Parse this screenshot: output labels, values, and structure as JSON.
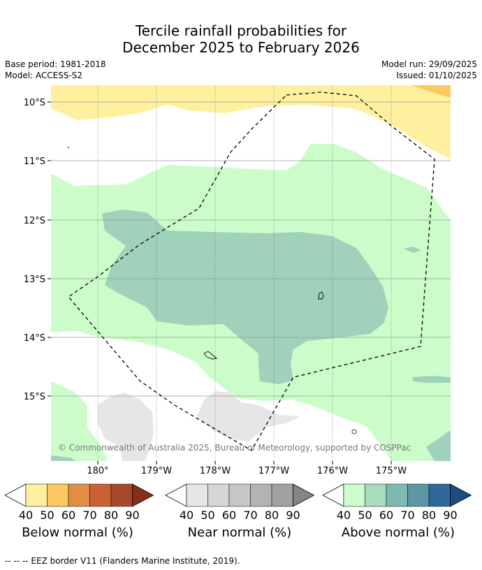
{
  "header": {
    "title_line1": "Tercile rainfall probabilities for",
    "title_line2": "December 2025 to February 2026",
    "base_period": "Base period: 1981-2018",
    "model": "Model: ACCESS-S2",
    "model_run": "Model run: 29/09/2025",
    "issued": "Issued: 01/10/2025"
  },
  "map": {
    "lat_labels": [
      "10°S",
      "11°S",
      "12°S",
      "13°S",
      "14°S",
      "15°S"
    ],
    "lon_labels": [
      "180°",
      "179°W",
      "178°W",
      "177°W",
      "176°W",
      "175°W"
    ],
    "copyright": "© Commonwealth of Australia 2025, Bureau of Meteorology, supported by COSPPac"
  },
  "legend": {
    "ticks": [
      "40",
      "50",
      "60",
      "70",
      "80",
      "90"
    ],
    "below": {
      "caption": "Below normal (%)",
      "colors": [
        "#fff0a0",
        "#fdc961",
        "#e08f45",
        "#cc6133",
        "#a9492c",
        "#8b2b1b"
      ]
    },
    "near": {
      "caption": "Near normal (%)",
      "colors": [
        "#e6e6e6",
        "#d6d6d6",
        "#c6c6c6",
        "#b3b3b3",
        "#a0a0a0",
        "#858585"
      ]
    },
    "above": {
      "caption": "Above normal (%)",
      "colors": [
        "#ccfcca",
        "#a7dcbe",
        "#7fb9b2",
        "#5b97a5",
        "#306799",
        "#184c82"
      ]
    }
  },
  "footer": {
    "text": "--  --  -- EEZ border V11 (Flanders Marine Institute, 2019)."
  }
}
